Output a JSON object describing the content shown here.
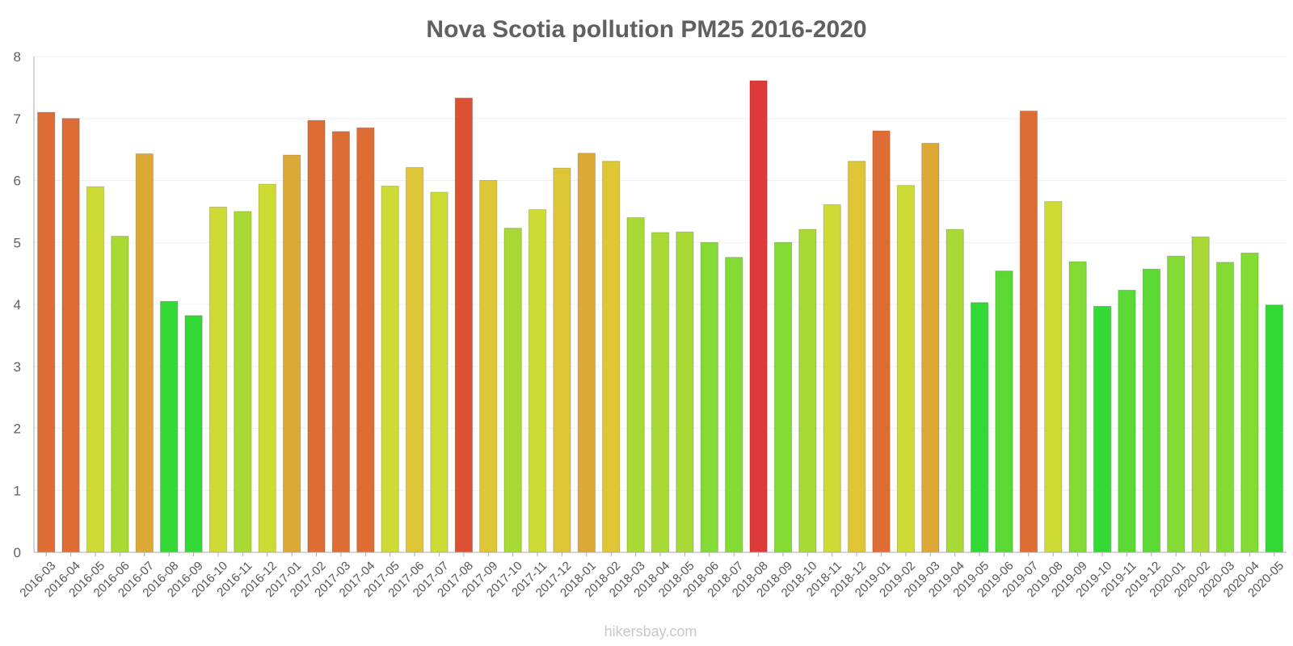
{
  "watermark": "hikersbay.com",
  "chart_data": {
    "type": "bar",
    "title": "Nova Scotia pollution PM25 2016-2020",
    "xlabel": "",
    "ylabel": "",
    "ylim": [
      0,
      8
    ],
    "yticks": [
      "0",
      "1",
      "2",
      "3",
      "4",
      "5",
      "6",
      "7",
      "8"
    ],
    "grid": true,
    "categories": [
      "2016-03",
      "2016-04",
      "2016-05",
      "2016-06",
      "2016-07",
      "2016-08",
      "2016-09",
      "2016-10",
      "2016-11",
      "2016-12",
      "2017-01",
      "2017-02",
      "2017-03",
      "2017-04",
      "2017-05",
      "2017-06",
      "2017-07",
      "2017-08",
      "2017-09",
      "2017-10",
      "2017-11",
      "2017-12",
      "2018-01",
      "2018-02",
      "2018-03",
      "2018-04",
      "2018-05",
      "2018-06",
      "2018-07",
      "2018-08",
      "2018-09",
      "2018-10",
      "2018-11",
      "2018-12",
      "2019-01",
      "2019-02",
      "2019-03",
      "2019-04",
      "2019-05",
      "2019-06",
      "2019-07",
      "2019-08",
      "2019-09",
      "2019-10",
      "2019-11",
      "2019-12",
      "2020-01",
      "2020-02",
      "2020-03",
      "2020-04",
      "2020-05"
    ],
    "values": [
      7.1,
      7.0,
      5.9,
      5.1,
      6.43,
      4.05,
      3.82,
      5.57,
      5.5,
      5.94,
      6.41,
      6.97,
      6.79,
      6.85,
      5.91,
      6.21,
      5.81,
      7.33,
      6.0,
      5.23,
      5.53,
      6.2,
      6.44,
      6.31,
      5.4,
      5.16,
      5.17,
      5.0,
      4.76,
      7.61,
      5.0,
      5.21,
      5.61,
      6.31,
      6.8,
      5.92,
      6.6,
      5.21,
      4.03,
      4.54,
      7.12,
      5.66,
      4.69,
      3.97,
      4.23,
      4.57,
      4.78,
      5.09,
      4.68,
      4.83,
      3.99
    ],
    "colors": [
      "#de6d35",
      "#de6d35",
      "#cfdb35",
      "#a8d935",
      "#dca836",
      "#33d934",
      "#33d934",
      "#cfdb35",
      "#a8d935",
      "#cfdb35",
      "#dca836",
      "#de6d35",
      "#de6d35",
      "#de6d35",
      "#cfdb35",
      "#dfc636",
      "#cfdb35",
      "#dc5034",
      "#dfc636",
      "#a8d935",
      "#cfdb35",
      "#dfc636",
      "#dca836",
      "#dfc636",
      "#a8d935",
      "#a8d935",
      "#a8d935",
      "#83db34",
      "#83db34",
      "#dd3a3a",
      "#83db34",
      "#a8d935",
      "#cfdb35",
      "#dfc636",
      "#de6d35",
      "#cfdb35",
      "#dca836",
      "#a8d935",
      "#33d934",
      "#5ad934",
      "#de6d35",
      "#cfdb35",
      "#83db34",
      "#33d934",
      "#5ad934",
      "#5ad934",
      "#83db34",
      "#a8d935",
      "#83db34",
      "#83db34",
      "#33d934"
    ]
  }
}
